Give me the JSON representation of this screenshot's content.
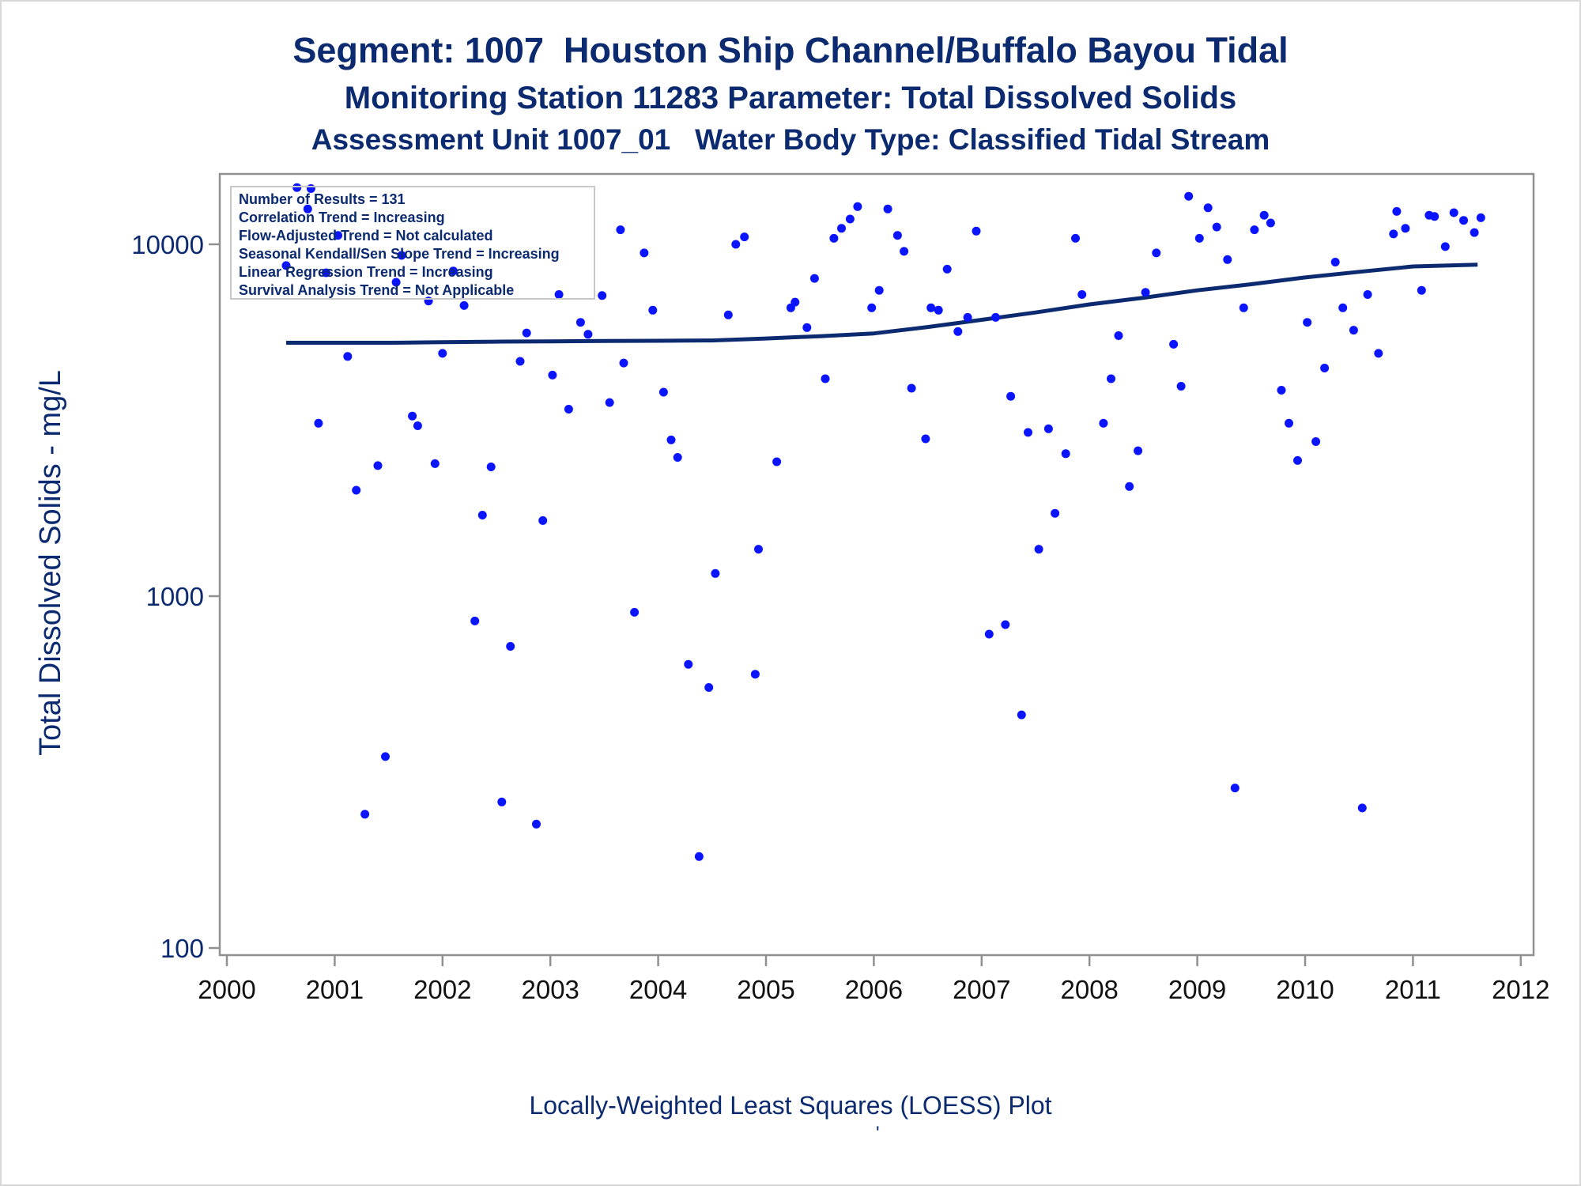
{
  "chart_data": {
    "type": "scatter",
    "title": "Segment: 1007  Houston Ship Channel/Buffalo Bayou Tidal",
    "subtitle_1": "Monitoring Station 11283 Parameter: Total Dissolved Solids",
    "subtitle_2": "Assessment Unit 1007_01   Water Body Type: Classified Tidal Stream",
    "ylabel": "Total Dissolved Solids - mg/L",
    "xlabel": "",
    "footnote": "Locally-Weighted Least Squares (LOESS) Plot",
    "footnote_mark": "'",
    "y_scale": "log",
    "ylim": [
      100,
      15000
    ],
    "xlim": [
      2000,
      2012.15
    ],
    "y_ticks": [
      100,
      1000,
      10000
    ],
    "y_tick_labels": [
      "100",
      "1000",
      "10000"
    ],
    "x_ticks": [
      2000,
      2001,
      2002,
      2003,
      2004,
      2005,
      2006,
      2007,
      2008,
      2009,
      2010,
      2011,
      2012
    ],
    "x_tick_labels": [
      "2000",
      "2001",
      "2002",
      "2003",
      "2004",
      "2005",
      "2006",
      "2007",
      "2008",
      "2009",
      "2010",
      "2011",
      "2012"
    ],
    "grid": false,
    "legend_position": "top-left",
    "stats_box": [
      "Number of Results = 131",
      "Correlation Trend = Increasing",
      "Flow-Adjusted Trend = Not calculated",
      "Seasonal Kendall/Sen Slope Trend = Increasing",
      "Linear Regression Trend = Increasing",
      "Survival Analysis Trend = Not Applicable"
    ],
    "colors": {
      "points": "#0a14ff",
      "loess": "#0b2a6f",
      "text": "#0b2a6f",
      "axis": "#909090"
    },
    "series": [
      {
        "type": "scatter",
        "points": [
          [
            2000.55,
            8700
          ],
          [
            2000.65,
            14500
          ],
          [
            2000.75,
            12600
          ],
          [
            2000.78,
            14400
          ],
          [
            2000.85,
            3100
          ],
          [
            2000.92,
            8300
          ],
          [
            2001.03,
            10600
          ],
          [
            2001.12,
            4800
          ],
          [
            2001.2,
            2000
          ],
          [
            2001.28,
            240
          ],
          [
            2001.4,
            2350
          ],
          [
            2001.47,
            350
          ],
          [
            2001.57,
            7800
          ],
          [
            2001.62,
            9300
          ],
          [
            2001.72,
            3250
          ],
          [
            2001.77,
            3050
          ],
          [
            2001.87,
            6900
          ],
          [
            2001.93,
            2380
          ],
          [
            2002.0,
            4900
          ],
          [
            2002.1,
            8400
          ],
          [
            2002.2,
            6700
          ],
          [
            2002.3,
            850
          ],
          [
            2002.37,
            1700
          ],
          [
            2002.45,
            2330
          ],
          [
            2002.55,
            260
          ],
          [
            2002.63,
            720
          ],
          [
            2002.72,
            4650
          ],
          [
            2002.78,
            5600
          ],
          [
            2002.87,
            225
          ],
          [
            2002.93,
            1640
          ],
          [
            2003.02,
            4250
          ],
          [
            2003.08,
            7200
          ],
          [
            2003.17,
            3400
          ],
          [
            2003.28,
            6000
          ],
          [
            2003.35,
            5550
          ],
          [
            2003.48,
            7150
          ],
          [
            2003.55,
            3550
          ],
          [
            2003.65,
            11000
          ],
          [
            2003.68,
            4600
          ],
          [
            2003.78,
            900
          ],
          [
            2003.87,
            9450
          ],
          [
            2003.95,
            6500
          ],
          [
            2004.05,
            3800
          ],
          [
            2004.12,
            2780
          ],
          [
            2004.18,
            2480
          ],
          [
            2004.28,
            640
          ],
          [
            2004.38,
            182
          ],
          [
            2004.47,
            550
          ],
          [
            2004.53,
            1160
          ],
          [
            2004.65,
            6300
          ],
          [
            2004.72,
            10000
          ],
          [
            2004.8,
            10500
          ],
          [
            2004.9,
            600
          ],
          [
            2004.93,
            1360
          ],
          [
            2005.1,
            2410
          ],
          [
            2005.23,
            6600
          ],
          [
            2005.27,
            6850
          ],
          [
            2005.38,
            5800
          ],
          [
            2005.45,
            8000
          ],
          [
            2005.55,
            4150
          ],
          [
            2005.63,
            10400
          ],
          [
            2005.7,
            11100
          ],
          [
            2005.78,
            11800
          ],
          [
            2005.85,
            12800
          ],
          [
            2005.98,
            6600
          ],
          [
            2006.05,
            7400
          ],
          [
            2006.13,
            12600
          ],
          [
            2006.22,
            10600
          ],
          [
            2006.28,
            9550
          ],
          [
            2006.35,
            3900
          ],
          [
            2006.48,
            2800
          ],
          [
            2006.53,
            6600
          ],
          [
            2006.6,
            6500
          ],
          [
            2006.68,
            8500
          ],
          [
            2006.78,
            5650
          ],
          [
            2006.87,
            6200
          ],
          [
            2006.95,
            10900
          ],
          [
            2007.07,
            780
          ],
          [
            2007.13,
            6200
          ],
          [
            2007.22,
            830
          ],
          [
            2007.27,
            3700
          ],
          [
            2007.37,
            460
          ],
          [
            2007.43,
            2920
          ],
          [
            2007.53,
            1360
          ],
          [
            2007.62,
            2990
          ],
          [
            2007.68,
            1720
          ],
          [
            2007.78,
            2540
          ],
          [
            2007.87,
            10400
          ],
          [
            2007.93,
            7200
          ],
          [
            2008.13,
            3100
          ],
          [
            2008.2,
            4150
          ],
          [
            2008.27,
            5500
          ],
          [
            2008.37,
            2050
          ],
          [
            2008.45,
            2590
          ],
          [
            2008.52,
            7300
          ],
          [
            2008.62,
            9450
          ],
          [
            2008.78,
            5200
          ],
          [
            2008.85,
            3950
          ],
          [
            2008.92,
            13700
          ],
          [
            2009.02,
            10400
          ],
          [
            2009.1,
            12700
          ],
          [
            2009.18,
            11200
          ],
          [
            2009.28,
            9050
          ],
          [
            2009.35,
            285
          ],
          [
            2009.43,
            6600
          ],
          [
            2009.53,
            11000
          ],
          [
            2009.62,
            12100
          ],
          [
            2009.68,
            11500
          ],
          [
            2009.78,
            3850
          ],
          [
            2009.85,
            3100
          ],
          [
            2009.93,
            2430
          ],
          [
            2010.02,
            6000
          ],
          [
            2010.1,
            2750
          ],
          [
            2010.18,
            4450
          ],
          [
            2010.28,
            8900
          ],
          [
            2010.35,
            6600
          ],
          [
            2010.45,
            5700
          ],
          [
            2010.53,
            250
          ],
          [
            2010.58,
            7200
          ],
          [
            2010.68,
            4900
          ],
          [
            2010.82,
            10700
          ],
          [
            2010.85,
            12400
          ],
          [
            2010.93,
            11100
          ],
          [
            2011.08,
            7400
          ],
          [
            2011.15,
            12100
          ],
          [
            2011.2,
            12000
          ],
          [
            2011.3,
            9850
          ],
          [
            2011.38,
            12300
          ],
          [
            2011.47,
            11700
          ],
          [
            2011.57,
            10800
          ],
          [
            2011.63,
            11900
          ]
        ]
      },
      {
        "type": "line",
        "name": "LOESS",
        "points": [
          [
            2000.55,
            5250
          ],
          [
            2001.0,
            5250
          ],
          [
            2001.5,
            5250
          ],
          [
            2002.0,
            5270
          ],
          [
            2002.5,
            5290
          ],
          [
            2003.0,
            5300
          ],
          [
            2003.5,
            5310
          ],
          [
            2004.0,
            5320
          ],
          [
            2004.5,
            5330
          ],
          [
            2005.0,
            5400
          ],
          [
            2005.5,
            5480
          ],
          [
            2006.0,
            5580
          ],
          [
            2006.5,
            5820
          ],
          [
            2007.0,
            6100
          ],
          [
            2007.5,
            6400
          ],
          [
            2008.0,
            6750
          ],
          [
            2008.5,
            7050
          ],
          [
            2009.0,
            7400
          ],
          [
            2009.5,
            7700
          ],
          [
            2010.0,
            8050
          ],
          [
            2010.5,
            8350
          ],
          [
            2011.0,
            8650
          ],
          [
            2011.6,
            8750
          ]
        ]
      }
    ]
  }
}
